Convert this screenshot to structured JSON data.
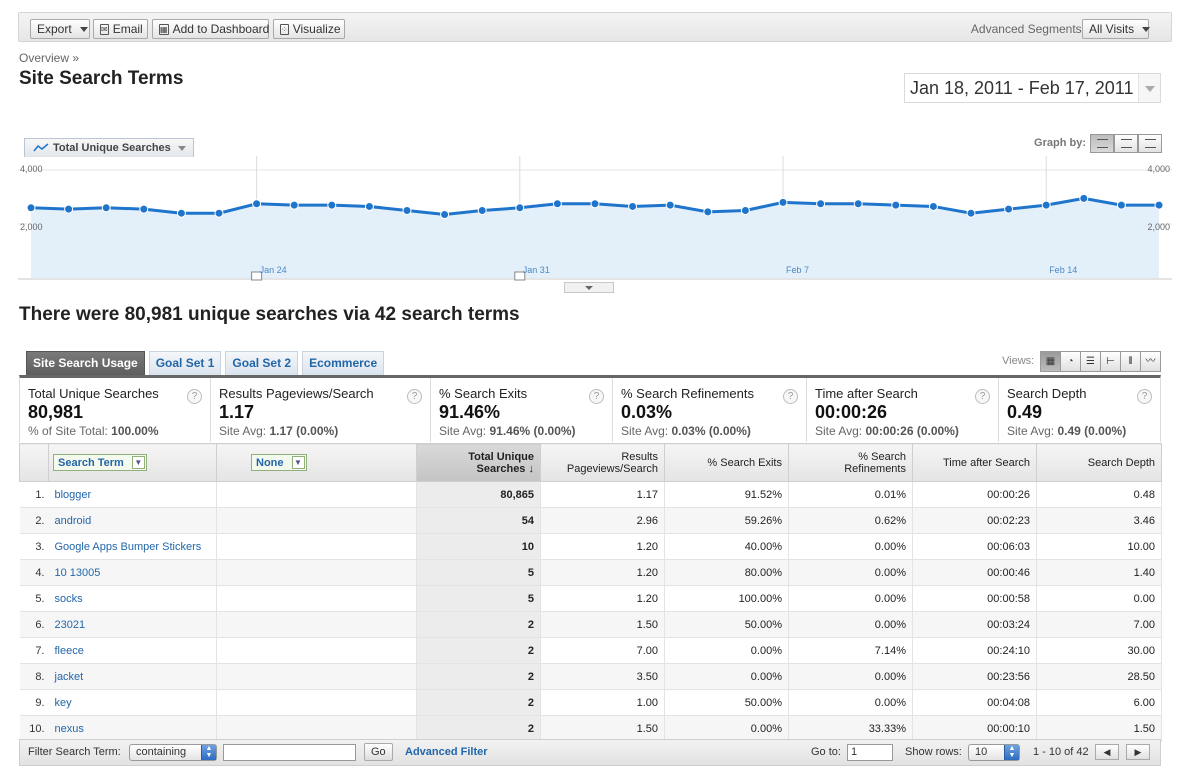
{
  "toolbar": {
    "export_label": "Export",
    "email_label": "Email",
    "dashboard_label": "Add to Dashboard",
    "visualize_label": "Visualize",
    "segments_label": "Advanced Segments:",
    "segments_value": "All Visits"
  },
  "breadcrumb": "Overview »",
  "page_title": "Site Search Terms",
  "date_range": "Jan 18, 2011 - Feb 17, 2011",
  "graph": {
    "metric_label": "Total Unique Searches",
    "graph_by_label": "Graph by:"
  },
  "chart_data": {
    "type": "area",
    "title": "",
    "series": [
      {
        "name": "Total Unique Searches",
        "values": [
          2600,
          2550,
          2600,
          2550,
          2400,
          2400,
          2750,
          2700,
          2700,
          2650,
          2500,
          2350,
          2500,
          2600,
          2750,
          2750,
          2650,
          2700,
          2450,
          2500,
          2800,
          2750,
          2750,
          2700,
          2650,
          2400,
          2550,
          2700,
          2950,
          2700,
          2700
        ]
      }
    ],
    "ylim": [
      0,
      4000
    ],
    "y_ticks": [
      "4,000",
      "2,000"
    ],
    "x_tick_labels": [
      "Jan 24",
      "Jan 31",
      "Feb 7",
      "Feb 14"
    ],
    "x_tick_index": [
      6,
      13,
      20,
      27
    ],
    "grid": true,
    "color": "#1f75cc",
    "fill": "#e3eff9"
  },
  "summary_headline": "There were 80,981 unique searches via 42 search terms",
  "tabs": [
    "Site Search Usage",
    "Goal Set 1",
    "Goal Set 2",
    "Ecommerce"
  ],
  "views_label": "Views:",
  "scorecard": [
    {
      "label": "Total Unique Searches",
      "value": "80,981",
      "sub_prefix": "% of Site Total: ",
      "sub_value": "100.00%"
    },
    {
      "label": "Results Pageviews/Search",
      "value": "1.17",
      "sub_prefix": "Site Avg: ",
      "sub_value": "1.17 (0.00%)"
    },
    {
      "label": "% Search Exits",
      "value": "91.46%",
      "sub_prefix": "Site Avg: ",
      "sub_value": "91.46% (0.00%)"
    },
    {
      "label": "% Search Refinements",
      "value": "0.03%",
      "sub_prefix": "Site Avg: ",
      "sub_value": "0.03% (0.00%)"
    },
    {
      "label": "Time after Search",
      "value": "00:00:26",
      "sub_prefix": "Site Avg: ",
      "sub_value": "00:00:26 (0.00%)"
    },
    {
      "label": "Search Depth",
      "value": "0.49",
      "sub_prefix": "Site Avg: ",
      "sub_value": "0.49 (0.00%)"
    }
  ],
  "table": {
    "dimension_primary": "Search Term",
    "dimension_secondary": "None",
    "columns": [
      "Total Unique Searches",
      "Results Pageviews/Search",
      "% Search Exits",
      "% Search Refinements",
      "Time after Search",
      "Search Depth"
    ],
    "rows": [
      [
        "1.",
        "blogger",
        "80,865",
        "1.17",
        "91.52%",
        "0.01%",
        "00:00:26",
        "0.48"
      ],
      [
        "2.",
        "android",
        "54",
        "2.96",
        "59.26%",
        "0.62%",
        "00:02:23",
        "3.46"
      ],
      [
        "3.",
        "Google Apps Bumper Stickers",
        "10",
        "1.20",
        "40.00%",
        "0.00%",
        "00:06:03",
        "10.00"
      ],
      [
        "4.",
        "10 13005",
        "5",
        "1.20",
        "80.00%",
        "0.00%",
        "00:00:46",
        "1.40"
      ],
      [
        "5.",
        "socks",
        "5",
        "1.20",
        "100.00%",
        "0.00%",
        "00:00:58",
        "0.00"
      ],
      [
        "6.",
        "23021",
        "2",
        "1.50",
        "50.00%",
        "0.00%",
        "00:03:24",
        "7.00"
      ],
      [
        "7.",
        "fleece",
        "2",
        "7.00",
        "0.00%",
        "7.14%",
        "00:24:10",
        "30.00"
      ],
      [
        "8.",
        "jacket",
        "2",
        "3.50",
        "0.00%",
        "0.00%",
        "00:23:56",
        "28.50"
      ],
      [
        "9.",
        "key",
        "2",
        "1.00",
        "50.00%",
        "0.00%",
        "00:04:08",
        "6.00"
      ],
      [
        "10.",
        "nexus",
        "2",
        "1.50",
        "0.00%",
        "33.33%",
        "00:00:10",
        "1.50"
      ]
    ]
  },
  "footer": {
    "filter_label": "Filter Search Term:",
    "filter_mode": "containing",
    "filter_value": "",
    "go_label": "Go",
    "advanced_filter": "Advanced Filter",
    "goto_label": "Go to:",
    "goto_value": "1",
    "show_rows_label": "Show rows:",
    "show_rows_value": "10",
    "range_text": "1 - 10 of 42"
  }
}
